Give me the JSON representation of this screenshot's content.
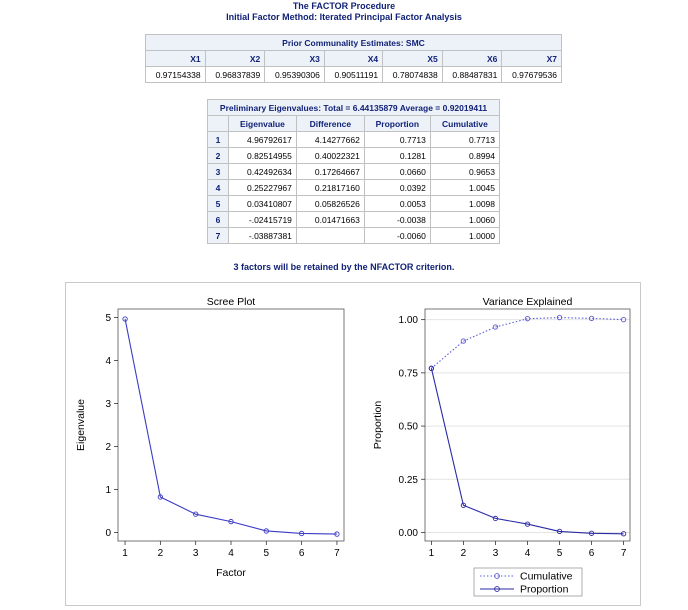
{
  "header": {
    "line1": "The FACTOR Procedure",
    "line2": "Initial Factor Method: Iterated Principal Factor Analysis"
  },
  "prior": {
    "title": "Prior Communality Estimates: SMC",
    "columns": [
      "X1",
      "X2",
      "X3",
      "X4",
      "X5",
      "X6",
      "X7"
    ],
    "values": [
      "0.97154338",
      "0.96837839",
      "0.95390306",
      "0.90511191",
      "0.78074838",
      "0.88487831",
      "0.97679536"
    ]
  },
  "eigen": {
    "title": "Preliminary Eigenvalues: Total = 6.44135879 Average = 0.92019411",
    "columns": [
      "Eigenvalue",
      "Difference",
      "Proportion",
      "Cumulative"
    ],
    "rows": [
      [
        "1",
        "4.96792617",
        "4.14277662",
        "0.7713",
        "0.7713"
      ],
      [
        "2",
        "0.82514955",
        "0.40022321",
        "0.1281",
        "0.8994"
      ],
      [
        "3",
        "0.42492634",
        "0.17264667",
        "0.0660",
        "0.9653"
      ],
      [
        "4",
        "0.25227967",
        "0.21817160",
        "0.0392",
        "1.0045"
      ],
      [
        "5",
        "0.03410807",
        "0.05826526",
        "0.0053",
        "1.0098"
      ],
      [
        "6",
        "-.02415719",
        "0.01471663",
        "-0.0038",
        "1.0060"
      ],
      [
        "7",
        "-.03887381",
        "",
        "-0.0060",
        "1.0000"
      ]
    ]
  },
  "note": "3 factors will be retained by the NFACTOR criterion.",
  "chart_data": [
    {
      "type": "line",
      "title": "Scree Plot",
      "xlabel": "Factor",
      "ylabel": "Eigenvalue",
      "x": [
        1,
        2,
        3,
        4,
        5,
        6,
        7
      ],
      "xticks": [
        "1",
        "2",
        "3",
        "4",
        "5",
        "6",
        "7"
      ],
      "yticks": [
        "0",
        "1",
        "2",
        "3",
        "4",
        "5"
      ],
      "ylim": [
        -0.2,
        5.2
      ],
      "xlim": [
        0.8,
        7.2
      ],
      "series": [
        {
          "values": [
            4.96792617,
            0.82514955,
            0.42492634,
            0.25227967,
            0.03410807,
            -0.02415719,
            -0.03887381
          ],
          "color": "#3b3bc7",
          "style": "solid"
        }
      ]
    },
    {
      "type": "line",
      "title": "Variance Explained",
      "xlabel": "Factor",
      "ylabel": "Proportion",
      "x": [
        1,
        2,
        3,
        4,
        5,
        6,
        7
      ],
      "xticks": [
        "1",
        "2",
        "3",
        "4",
        "5",
        "6",
        "7"
      ],
      "yticks": [
        "0.00",
        "0.25",
        "0.50",
        "0.75",
        "1.00"
      ],
      "ylim": [
        -0.04,
        1.05
      ],
      "xlim": [
        0.8,
        7.2
      ],
      "legend_position": "bottom",
      "series": [
        {
          "name": "Cumulative",
          "values": [
            0.7713,
            0.8994,
            0.9653,
            1.0045,
            1.0098,
            1.006,
            1.0
          ],
          "color": "#5a5ad6",
          "style": "dotted"
        },
        {
          "name": "Proportion",
          "values": [
            0.7713,
            0.1281,
            0.066,
            0.0392,
            0.0053,
            -0.0038,
            -0.006
          ],
          "color": "#2a2aa5",
          "style": "solid"
        }
      ]
    }
  ]
}
